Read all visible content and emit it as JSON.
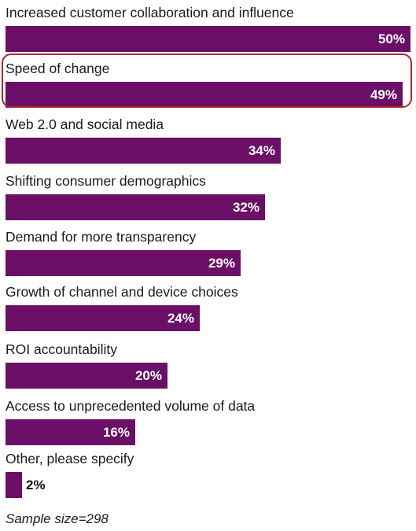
{
  "chart_data": {
    "type": "bar",
    "orientation": "horizontal",
    "categories": [
      "Increased customer collaboration and influence",
      "Speed of change",
      "Web 2.0 and social media",
      "Shifting consumer demographics",
      "Demand for more transparency",
      "Growth of channel and device choices",
      "ROI accountability",
      "Access to unprecedented volume of data",
      "Other, please specify"
    ],
    "values": [
      50,
      49,
      34,
      32,
      29,
      24,
      20,
      16,
      2
    ],
    "value_labels": [
      "50%",
      "49%",
      "34%",
      "32%",
      "29%",
      "24%",
      "20%",
      "16%",
      "2%"
    ],
    "unit": "%",
    "highlighted_category": "Speed of change",
    "xlim": [
      0,
      50
    ],
    "grid": false,
    "bar_color": "#6b0f66",
    "highlight_color": "#b2262d",
    "note": "Sample size=298"
  }
}
